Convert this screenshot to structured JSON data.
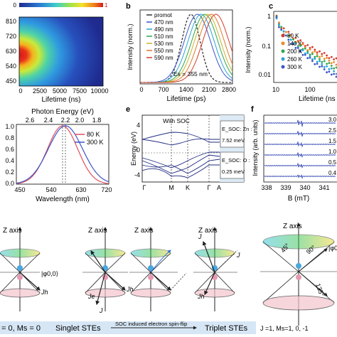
{
  "colorbar": {
    "min_label": "0",
    "max_label": "1"
  },
  "panel_a": {
    "y_ticks": [
      "810",
      "720",
      "630",
      "540",
      "450"
    ],
    "x_ticks": [
      "0",
      "2500",
      "5000",
      "7500",
      "10000"
    ],
    "xlabel": "Lifetime (ns)"
  },
  "panel_b": {
    "letter": "b",
    "ylabel": "Intensity (norm.)",
    "xlabel": "Lifetime (ps)",
    "x_ticks": [
      "0",
      "700",
      "1400",
      "2100",
      "2800"
    ],
    "legend": [
      "promot",
      "470 nm",
      "490 nm",
      "510 nm",
      "530 nm",
      "550 nm",
      "590 nm"
    ],
    "legend_colors": [
      "#333333",
      "#3b55c8",
      "#2aa3d6",
      "#2ea84a",
      "#c9b52a",
      "#e0762a",
      "#d23b2b"
    ],
    "annotation": "Ex = 355 nm"
  },
  "panel_c": {
    "letter": "c",
    "ylabel": "Intensity (norm.)",
    "xlabel": "Lifetime (ns",
    "y_ticks": [
      "1",
      "0.1",
      "0.01"
    ],
    "x_ticks": [
      "10",
      "100"
    ],
    "legend": [
      "80 K",
      "140 K",
      "200 K",
      "260 K",
      "300 K"
    ],
    "legend_colors": [
      "#d23b2b",
      "#e98b2a",
      "#2ea84a",
      "#2aa3d6",
      "#3b55c8"
    ]
  },
  "panel_d": {
    "top_axis_label": "Photon Energy (eV)",
    "top_ticks": [
      "2.6",
      "2.4",
      "2.2",
      "2.0",
      "1.8"
    ],
    "y_ticks": [
      "1.0",
      "0.8",
      "0.6",
      "0.4",
      "0.2",
      "0.0"
    ],
    "x_ticks": [
      "450",
      "540",
      "630",
      "720"
    ],
    "xlabel": "Wavelength (nm)",
    "legend": [
      "80 K",
      "300 K"
    ],
    "legend_colors": [
      "#e0505a",
      "#3b55c8"
    ]
  },
  "panel_e": {
    "letter": "e",
    "title": "With SOC",
    "ylabel": "Energy (eV)",
    "y_ticks": [
      "4",
      "0",
      "-4"
    ],
    "k_points": [
      "Γ",
      "M",
      "K",
      "Γ",
      "A"
    ],
    "box1": {
      "label": "E_SOC: Zn :",
      "value": "7.52 meV"
    },
    "box2": {
      "label": "E_SOC: O :",
      "value": "0.25 meV"
    }
  },
  "panel_f": {
    "letter": "f",
    "ylabel": "Intensity (arb. units)",
    "xlabel": "B (mT)",
    "x_ticks": [
      "338",
      "339",
      "340",
      "341"
    ],
    "trace_labels": [
      "3.0",
      "2.5",
      "1.5",
      "1.0",
      "0.5",
      "0.4"
    ]
  },
  "bottom": {
    "z_axis_label": "Z axis",
    "phi_label": "|φ0,0⟩",
    "angle_45": "45°",
    "angle_90": "90°",
    "angle_135": "135°",
    "vec_J": "J",
    "vec_Jh": "Jh",
    "vec_Je": "Je",
    "left_caption": "= 0, Ms = 0",
    "singlet": "Singlet STEs",
    "flip": "SOC induced electron spin-flip",
    "triplet": "Triplet STEs",
    "right_caption": "J =1, Ms=1, 0, -1"
  }
}
